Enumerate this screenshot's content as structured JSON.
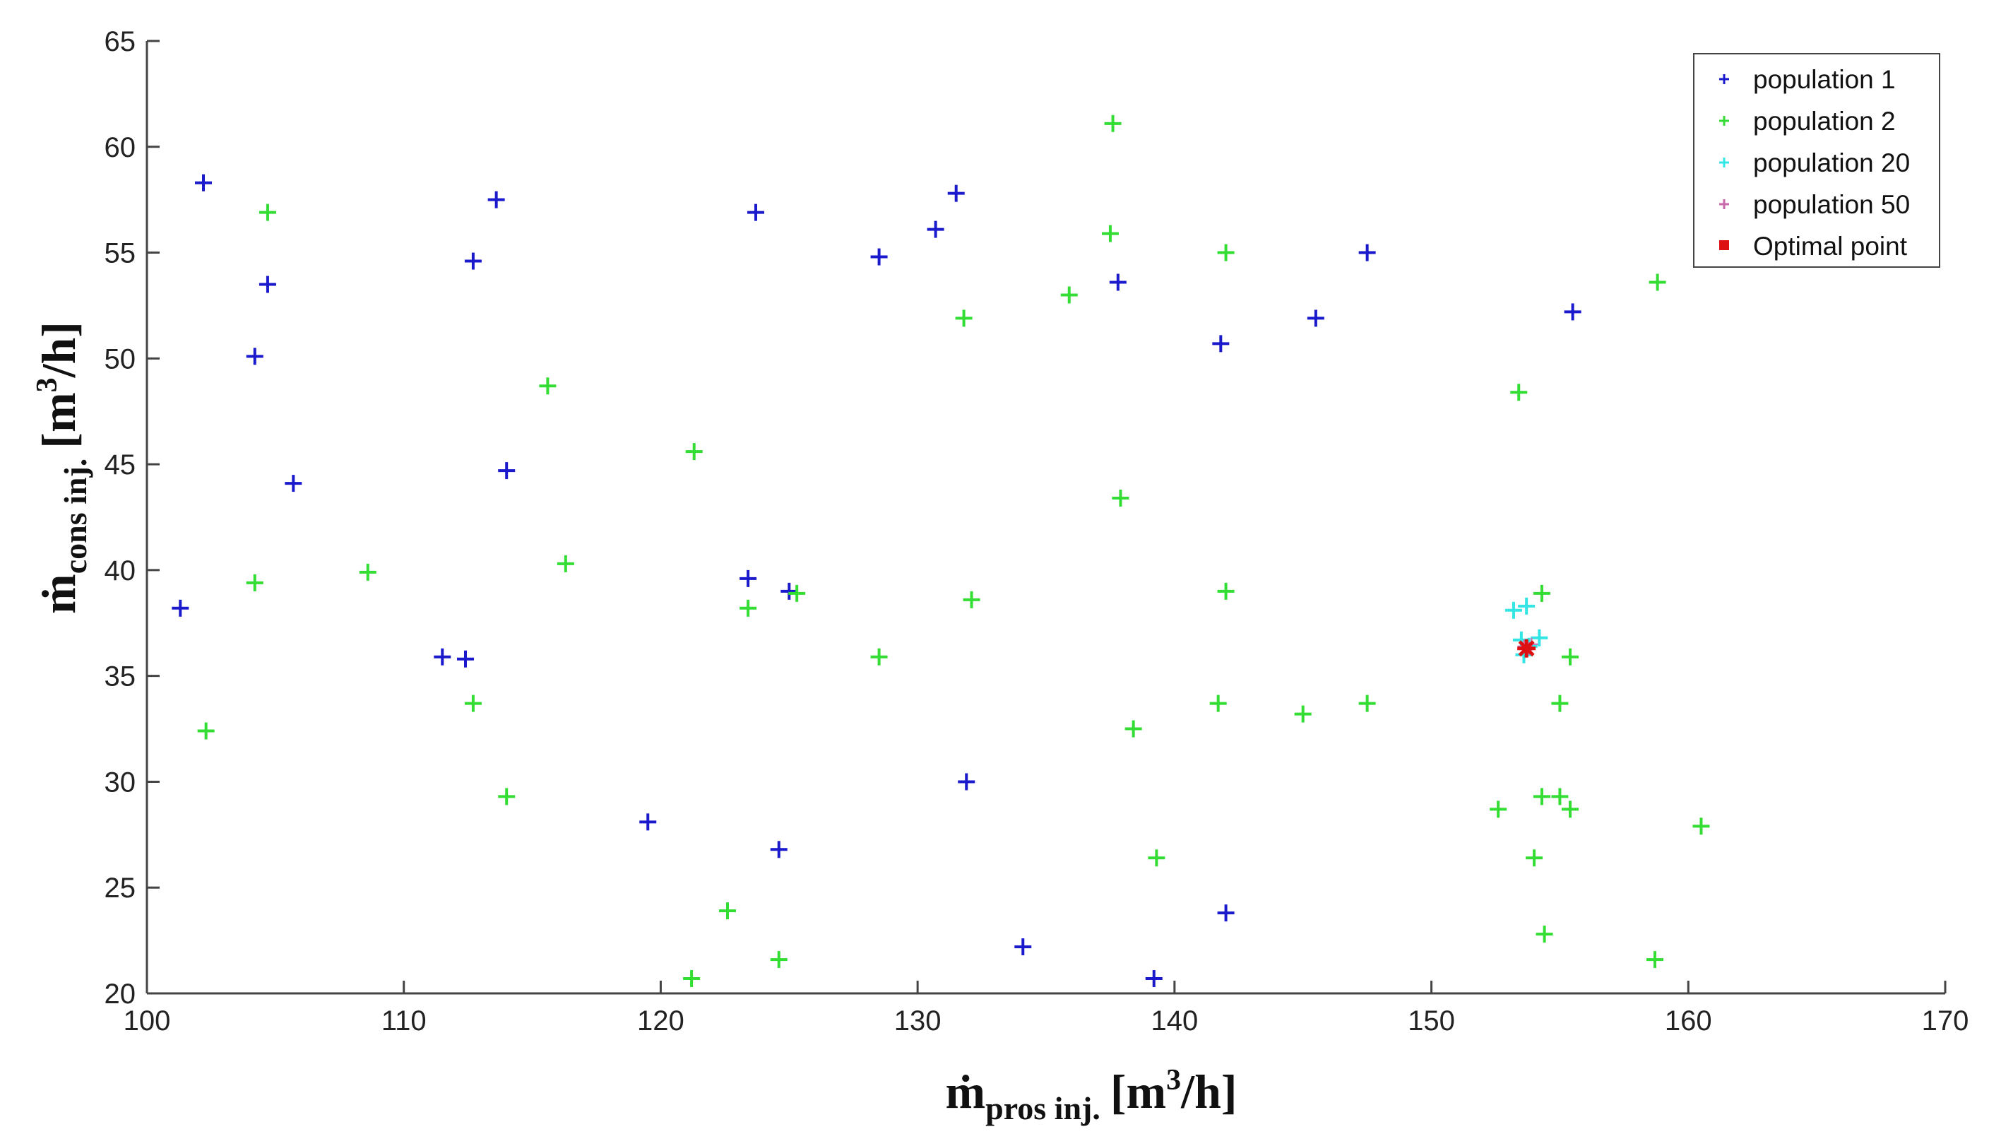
{
  "chart_data": {
    "type": "scatter",
    "x_axis": {
      "label_main": "ṁ",
      "label_sub": "pros inj.",
      "label_unit_open": "[m",
      "label_unit_sup": "3",
      "label_unit_close": "/h]",
      "range": [
        100,
        170
      ],
      "ticks": [
        100,
        110,
        120,
        130,
        140,
        150,
        160,
        170
      ],
      "tick_labels": [
        "100",
        "110",
        "120",
        "130",
        "140",
        "150",
        "160",
        "170"
      ]
    },
    "y_axis": {
      "label_main": "ṁ",
      "label_sub": "cons inj.",
      "label_unit_open": "[m",
      "label_unit_sup": "3",
      "label_unit_close": "/h]",
      "range": [
        20,
        65
      ],
      "ticks": [
        20,
        25,
        30,
        35,
        40,
        45,
        50,
        55,
        60,
        65
      ],
      "tick_labels": [
        "20",
        "25",
        "30",
        "35",
        "40",
        "45",
        "50",
        "55",
        "60",
        "65"
      ]
    },
    "grid": false,
    "legend_position": "top-right",
    "series": [
      {
        "name": "population 1",
        "color": "#1a1acc",
        "marker": "plus",
        "points": [
          [
            102.2,
            58.3
          ],
          [
            113.6,
            57.5
          ],
          [
            123.7,
            56.9
          ],
          [
            131.5,
            57.8
          ],
          [
            130.7,
            56.1
          ],
          [
            112.7,
            54.6
          ],
          [
            104.7,
            53.5
          ],
          [
            128.5,
            54.8
          ],
          [
            137.8,
            53.6
          ],
          [
            147.5,
            55.0
          ],
          [
            104.2,
            50.1
          ],
          [
            141.8,
            50.7
          ],
          [
            145.5,
            51.9
          ],
          [
            155.5,
            52.2
          ],
          [
            105.7,
            44.1
          ],
          [
            114.0,
            44.7
          ],
          [
            101.3,
            38.2
          ],
          [
            123.4,
            39.6
          ],
          [
            125.0,
            39.0
          ],
          [
            111.5,
            35.9
          ],
          [
            112.4,
            35.8
          ],
          [
            131.9,
            30.0
          ],
          [
            119.5,
            28.1
          ],
          [
            124.6,
            26.8
          ],
          [
            142.0,
            23.8
          ],
          [
            134.1,
            22.2
          ],
          [
            139.2,
            20.7
          ]
        ]
      },
      {
        "name": "population 2",
        "color": "#33dd33",
        "marker": "plus",
        "points": [
          [
            137.6,
            61.1
          ],
          [
            104.7,
            56.9
          ],
          [
            137.5,
            55.9
          ],
          [
            142.0,
            55.0
          ],
          [
            131.8,
            51.9
          ],
          [
            135.9,
            53.0
          ],
          [
            158.8,
            53.6
          ],
          [
            115.6,
            48.7
          ],
          [
            153.4,
            48.4
          ],
          [
            121.3,
            45.6
          ],
          [
            137.9,
            43.4
          ],
          [
            104.2,
            39.4
          ],
          [
            108.6,
            39.9
          ],
          [
            116.3,
            40.3
          ],
          [
            123.4,
            38.2
          ],
          [
            125.3,
            38.9
          ],
          [
            132.1,
            38.6
          ],
          [
            142.0,
            39.0
          ],
          [
            154.3,
            38.9
          ],
          [
            128.5,
            35.9
          ],
          [
            155.4,
            35.9
          ],
          [
            102.3,
            32.4
          ],
          [
            112.7,
            33.7
          ],
          [
            138.4,
            32.5
          ],
          [
            141.7,
            33.7
          ],
          [
            145.0,
            33.2
          ],
          [
            147.5,
            33.7
          ],
          [
            155.0,
            33.7
          ],
          [
            114.0,
            29.3
          ],
          [
            152.6,
            28.7
          ],
          [
            154.3,
            29.3
          ],
          [
            155.0,
            29.3
          ],
          [
            155.4,
            28.7
          ],
          [
            160.5,
            27.9
          ],
          [
            139.3,
            26.4
          ],
          [
            154.0,
            26.4
          ],
          [
            122.6,
            23.9
          ],
          [
            154.4,
            22.8
          ],
          [
            124.6,
            21.6
          ],
          [
            158.7,
            21.6
          ],
          [
            121.2,
            20.7
          ]
        ]
      },
      {
        "name": "population 20",
        "color": "#33e5e5",
        "marker": "plus",
        "points": [
          [
            153.2,
            38.1
          ],
          [
            153.7,
            38.3
          ],
          [
            153.5,
            36.7
          ],
          [
            154.2,
            36.8
          ],
          [
            153.8,
            36.4
          ],
          [
            153.6,
            36.0
          ]
        ]
      },
      {
        "name": "population 50",
        "color": "#cc66aa",
        "marker": "plus",
        "points": [
          [
            153.8,
            36.3
          ],
          [
            153.6,
            36.4
          ],
          [
            153.9,
            36.5
          ]
        ]
      },
      {
        "name": "Optimal point",
        "color": "#dd1111",
        "marker": "star",
        "points": [
          [
            153.7,
            36.3
          ]
        ]
      }
    ]
  }
}
